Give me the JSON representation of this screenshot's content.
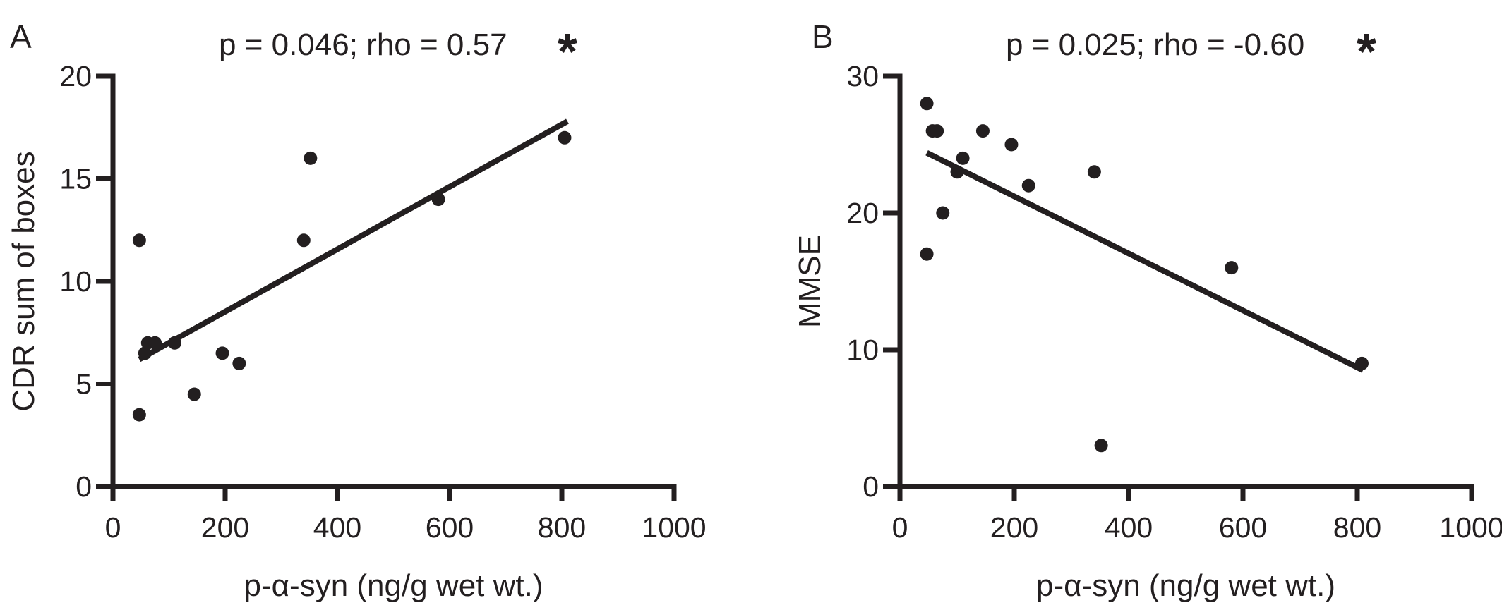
{
  "chart_data": [
    {
      "type": "scatter",
      "panel_label": "A",
      "annotation": "p = 0.046; rho = 0.57",
      "significance": "*",
      "xlabel": "p-α-syn (ng/g wet wt.)",
      "ylabel": "CDR sum of boxes",
      "xlim": [
        0,
        1000
      ],
      "ylim": [
        0,
        20
      ],
      "xticks": [
        0,
        200,
        400,
        600,
        800,
        1000
      ],
      "yticks": [
        0,
        5,
        10,
        15,
        20
      ],
      "grid": false,
      "points": [
        {
          "x": 47,
          "y": 12
        },
        {
          "x": 47,
          "y": 3.5
        },
        {
          "x": 57,
          "y": 6.5
        },
        {
          "x": 62,
          "y": 7
        },
        {
          "x": 75,
          "y": 7
        },
        {
          "x": 110,
          "y": 7
        },
        {
          "x": 145,
          "y": 4.5
        },
        {
          "x": 195,
          "y": 6.5
        },
        {
          "x": 225,
          "y": 6
        },
        {
          "x": 340,
          "y": 12
        },
        {
          "x": 352,
          "y": 16
        },
        {
          "x": 580,
          "y": 14
        },
        {
          "x": 805,
          "y": 17
        }
      ],
      "fit_line": {
        "x": [
          47,
          810
        ],
        "y": [
          6.2,
          17.8
        ]
      }
    },
    {
      "type": "scatter",
      "panel_label": "B",
      "annotation": "p = 0.025; rho = -0.60",
      "significance": "*",
      "xlabel": "p-α-syn (ng/g wet wt.)",
      "ylabel": "MMSE",
      "xlim": [
        0,
        1000
      ],
      "ylim": [
        0,
        30
      ],
      "xticks": [
        0,
        200,
        400,
        600,
        800,
        1000
      ],
      "yticks": [
        0,
        10,
        20,
        30
      ],
      "grid": false,
      "points": [
        {
          "x": 47,
          "y": 28
        },
        {
          "x": 47,
          "y": 17
        },
        {
          "x": 57,
          "y": 26
        },
        {
          "x": 65,
          "y": 26
        },
        {
          "x": 75,
          "y": 20
        },
        {
          "x": 100,
          "y": 23
        },
        {
          "x": 110,
          "y": 24
        },
        {
          "x": 145,
          "y": 26
        },
        {
          "x": 195,
          "y": 25
        },
        {
          "x": 225,
          "y": 22
        },
        {
          "x": 340,
          "y": 23
        },
        {
          "x": 352,
          "y": 3
        },
        {
          "x": 580,
          "y": 16
        },
        {
          "x": 808,
          "y": 9
        }
      ],
      "fit_line": {
        "x": [
          47,
          810
        ],
        "y": [
          24.4,
          8.5
        ]
      }
    }
  ]
}
